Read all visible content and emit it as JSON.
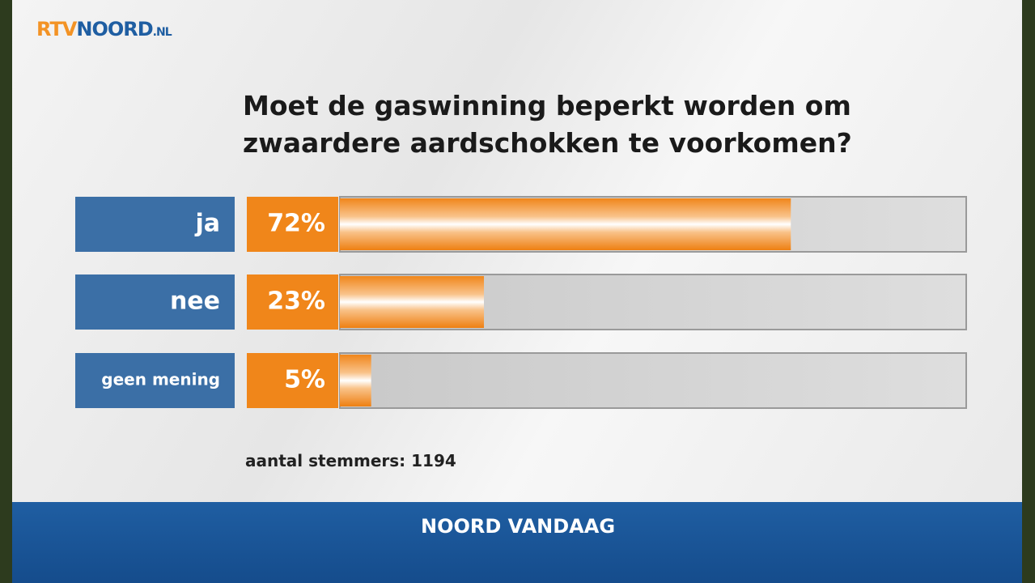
{
  "header": {
    "logo": [
      "RTV",
      "NOORD",
      ".NL"
    ]
  },
  "chart_data": {
    "type": "bar",
    "orientation": "horizontal",
    "title": "Moet de gaswinning beperkt worden om zwaardere aardschokken te voorkomen?",
    "categories": [
      "ja",
      "nee",
      "geen mening"
    ],
    "values": [
      72,
      23,
      5
    ],
    "value_labels": [
      "72%",
      "23%",
      "5%"
    ],
    "xlim": [
      0,
      100
    ],
    "color": "#f0861a",
    "label_color": "#3b6fa6",
    "note": "aantal stemmers: 1194"
  },
  "footer": {
    "logo": [
      "NOORD",
      "VANDAAG"
    ]
  }
}
